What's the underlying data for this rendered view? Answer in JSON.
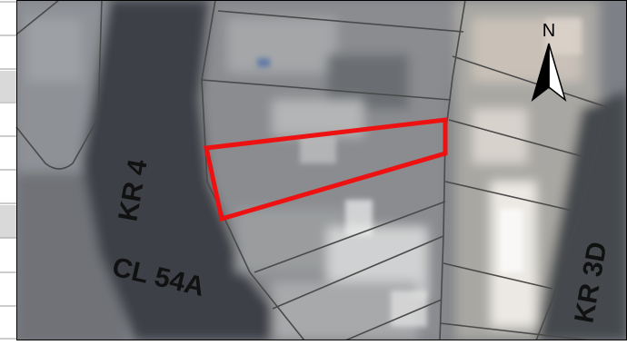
{
  "map": {
    "street_labels": {
      "kr4": "KR 4",
      "cl54a": "CL 54A",
      "kr3d": "KR 3D"
    },
    "north_arrow": {
      "letter": "N",
      "icon": "north-arrow-icon"
    },
    "highlight": {
      "color": "#ee1111",
      "icon": "parcel-highlight-outline"
    },
    "parcel_line_color": "#4a4a4a",
    "imagery_base_color": "#7d8086",
    "road_color": "#3e4147"
  }
}
